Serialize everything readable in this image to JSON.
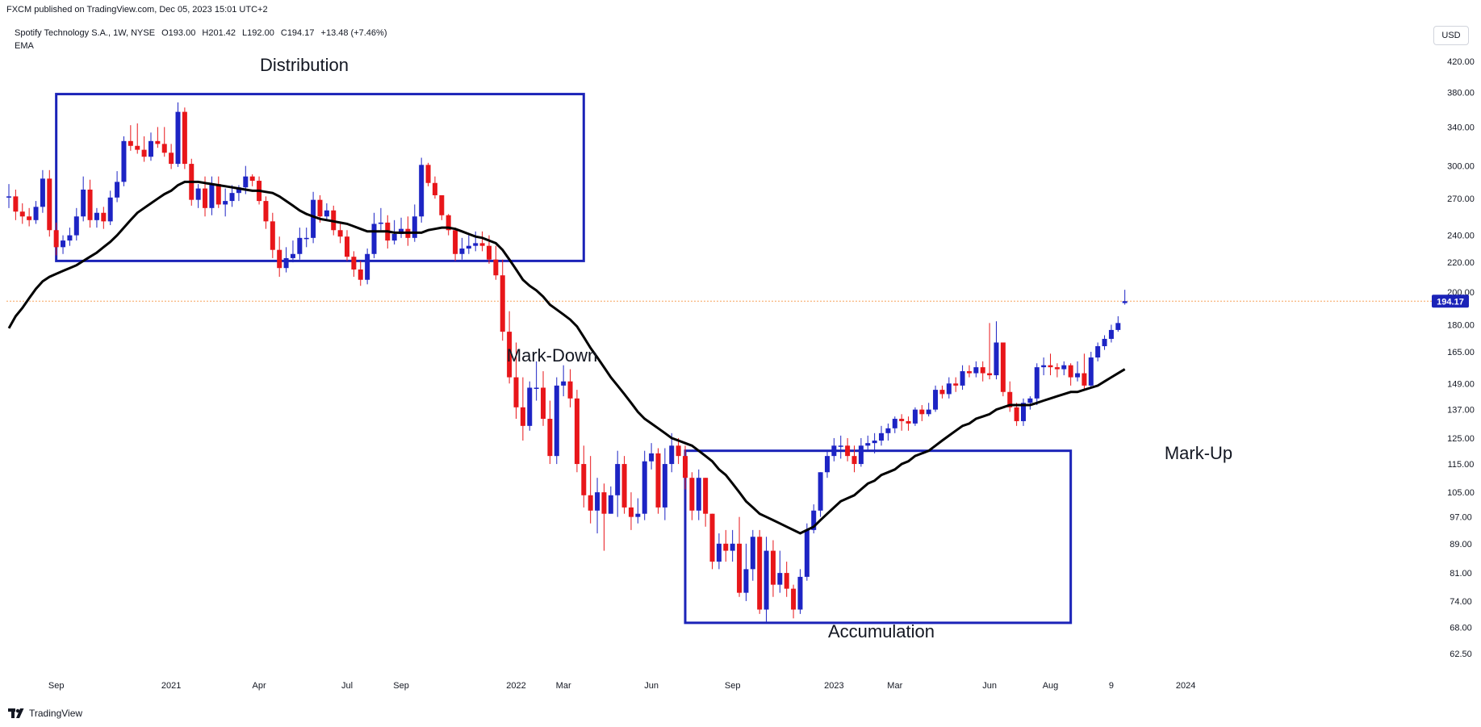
{
  "header": {
    "published": "FXCM published on TradingView.com, Dec 05, 2023 15:01 UTC+2",
    "symbol": "Spotify Technology S.A., 1W, NYSE",
    "open": "O193.00",
    "high": "H201.42",
    "low": "L192.00",
    "close": "C194.17",
    "change": "+13.48 (+7.46%)",
    "indicator": "EMA",
    "currency": "USD"
  },
  "footer": {
    "brand": "TradingView"
  },
  "colors": {
    "up": "#1d24c4",
    "down": "#e8161a",
    "ema": "#000000",
    "box": "#1b23b8",
    "last_price": "#1b23b8",
    "last_line": "#f7a35c"
  },
  "chart_data": {
    "type": "candlestick",
    "title": "Spotify Technology S.A., 1W, NYSE",
    "y_scale": "log",
    "ylim": [
      58,
      450
    ],
    "y_ticks": [
      "420.00",
      "380.00",
      "340.00",
      "300.00",
      "270.00",
      "240.00",
      "220.00",
      "200.00",
      "180.00",
      "165.00",
      "149.00",
      "137.00",
      "125.00",
      "115.00",
      "105.00",
      "97.00",
      "89.00",
      "81.00",
      "74.00",
      "68.00",
      "62.50"
    ],
    "x_ticks": [
      "Sep",
      "2021",
      "Apr",
      "Jul",
      "Sep",
      "2022",
      "Mar",
      "Jun",
      "Sep",
      "2023",
      "Mar",
      "Jun",
      "Aug",
      "9",
      "2024"
    ],
    "last_price": "194.17",
    "annotations": [
      {
        "text": "Distribution",
        "range_weeks": [
          7,
          85
        ],
        "price_range": [
          221,
          378
        ]
      },
      {
        "text": "Mark-Down"
      },
      {
        "text": "Accumulation",
        "range_weeks": [
          100,
          157
        ],
        "price_range": [
          69,
          120
        ]
      },
      {
        "text": "Mark-Up"
      }
    ],
    "ema_period_label": "EMA",
    "closes": [
      272,
      259,
      255,
      252,
      263,
      288,
      244,
      231,
      236,
      240,
      255,
      278,
      252,
      258,
      251,
      271,
      285,
      325,
      320,
      316,
      309,
      325,
      322,
      313,
      302,
      357,
      302,
      269,
      279,
      262,
      283,
      265,
      268,
      275,
      280,
      290,
      286,
      268,
      251,
      229,
      216,
      223,
      226,
      238,
      238,
      269,
      255,
      260,
      244,
      239,
      224,
      215,
      208,
      226,
      249,
      250,
      236,
      241,
      245,
      238,
      255,
      301,
      284,
      273,
      256,
      244,
      226,
      230,
      232,
      234,
      232,
      222,
      211,
      176,
      152,
      138,
      130,
      147,
      147,
      133,
      118,
      148,
      150,
      142,
      115,
      104,
      99,
      105,
      98,
      104,
      115,
      100,
      97,
      98,
      116,
      119,
      100,
      115,
      122,
      118,
      110,
      99,
      110,
      98,
      84,
      89,
      87,
      89,
      76,
      82,
      91,
      72,
      87,
      78,
      81,
      77,
      72,
      80,
      93,
      99,
      112,
      118,
      122,
      122,
      118,
      115,
      122,
      123,
      124,
      127,
      129,
      133,
      132,
      131,
      137,
      135,
      137,
      146,
      144,
      149,
      148,
      155,
      154,
      157,
      154,
      153,
      170,
      145,
      138,
      132,
      140,
      142,
      157,
      158,
      157,
      156,
      158,
      152,
      154,
      148,
      162,
      168,
      172,
      177,
      181,
      194.17
    ],
    "opens": [
      272,
      272,
      259,
      255,
      252,
      263,
      288,
      244,
      231,
      236,
      240,
      255,
      278,
      252,
      258,
      251,
      271,
      285,
      325,
      320,
      316,
      309,
      325,
      322,
      313,
      302,
      357,
      302,
      269,
      279,
      262,
      283,
      265,
      268,
      275,
      280,
      290,
      286,
      268,
      251,
      229,
      216,
      223,
      226,
      238,
      238,
      269,
      255,
      260,
      244,
      239,
      224,
      215,
      208,
      226,
      249,
      250,
      236,
      241,
      245,
      238,
      255,
      301,
      284,
      273,
      256,
      244,
      226,
      230,
      232,
      234,
      232,
      222,
      211,
      176,
      152,
      138,
      130,
      147,
      147,
      133,
      118,
      148,
      150,
      142,
      115,
      104,
      99,
      105,
      98,
      104,
      115,
      100,
      97,
      98,
      116,
      119,
      100,
      115,
      122,
      118,
      110,
      99,
      110,
      98,
      84,
      89,
      87,
      89,
      76,
      82,
      91,
      72,
      87,
      78,
      81,
      77,
      72,
      80,
      93,
      99,
      112,
      118,
      122,
      122,
      118,
      115,
      122,
      123,
      124,
      127,
      129,
      133,
      132,
      131,
      137,
      135,
      137,
      146,
      144,
      149,
      148,
      155,
      154,
      157,
      154,
      153,
      170,
      145,
      138,
      132,
      140,
      142,
      157,
      158,
      157,
      156,
      158,
      152,
      154,
      148,
      162,
      168,
      172,
      177,
      193.0
    ],
    "highs": [
      283,
      278,
      266,
      262,
      268,
      296,
      296,
      250,
      240,
      246,
      262,
      290,
      287,
      262,
      263,
      277,
      295,
      330,
      342,
      344,
      330,
      334,
      340,
      340,
      322,
      368,
      362,
      307,
      283,
      290,
      290,
      290,
      279,
      282,
      282,
      300,
      292,
      290,
      272,
      258,
      239,
      231,
      236,
      246,
      246,
      276,
      273,
      266,
      264,
      249,
      244,
      228,
      221,
      230,
      258,
      262,
      256,
      252,
      254,
      255,
      265,
      308,
      303,
      290,
      272,
      257,
      246,
      238,
      240,
      243,
      243,
      240,
      232,
      222,
      188,
      170,
      152,
      150,
      160,
      155,
      141,
      152,
      158,
      156,
      146,
      122,
      118,
      110,
      108,
      107,
      120,
      118,
      105,
      103,
      120,
      123,
      121,
      121,
      127,
      125,
      122,
      112,
      113,
      110,
      98,
      92,
      93,
      93,
      97,
      89,
      93,
      93,
      91,
      90,
      87,
      84,
      78,
      82,
      95,
      101,
      112,
      120,
      125,
      126,
      125,
      122,
      125,
      126,
      127,
      130,
      131,
      134,
      135,
      134,
      138,
      139,
      140,
      148,
      148,
      152,
      152,
      158,
      158,
      160,
      160,
      181,
      182,
      167,
      150,
      140,
      142,
      143,
      159,
      162,
      164,
      159,
      160,
      159,
      160,
      164,
      165,
      170,
      174,
      180,
      185,
      201.42
    ],
    "lows": [
      262,
      252,
      249,
      247,
      249,
      258,
      239,
      225,
      226,
      232,
      236,
      251,
      246,
      246,
      245,
      248,
      267,
      281,
      315,
      312,
      304,
      305,
      318,
      309,
      297,
      299,
      297,
      264,
      262,
      255,
      256,
      262,
      255,
      263,
      268,
      274,
      281,
      265,
      245,
      223,
      210,
      213,
      220,
      222,
      231,
      234,
      250,
      252,
      240,
      234,
      221,
      210,
      204,
      205,
      223,
      244,
      230,
      233,
      238,
      232,
      235,
      250,
      281,
      270,
      252,
      240,
      221,
      222,
      226,
      228,
      228,
      219,
      208,
      171,
      149,
      133,
      124,
      128,
      141,
      130,
      115,
      115,
      143,
      138,
      112,
      100,
      95,
      92,
      87,
      98,
      97,
      98,
      93,
      95,
      96,
      113,
      98,
      96,
      112,
      115,
      106,
      96,
      96,
      94,
      82,
      82,
      84,
      84,
      75,
      74,
      79,
      71,
      69,
      75,
      76,
      75,
      70,
      71,
      79,
      92,
      97,
      110,
      116,
      117,
      116,
      112,
      114,
      120,
      119,
      122,
      124,
      127,
      128,
      128,
      130,
      132,
      134,
      136,
      142,
      142,
      145,
      146,
      152,
      152,
      150,
      151,
      151,
      143,
      136,
      130,
      130,
      137,
      139,
      153,
      153,
      152,
      153,
      148,
      150,
      146,
      147,
      160,
      166,
      170,
      176,
      192.0
    ],
    "ema": [
      178,
      185,
      190,
      196,
      202,
      207,
      210,
      212,
      214,
      216,
      218,
      221,
      224,
      227,
      231,
      235,
      240,
      246,
      252,
      258,
      262,
      266,
      270,
      274,
      277,
      282,
      285,
      285,
      285,
      284,
      283,
      282,
      281,
      280,
      279,
      278,
      277,
      277,
      276,
      275,
      272,
      268,
      264,
      260,
      257,
      255,
      253,
      252,
      251,
      250,
      249,
      247,
      245,
      243,
      243,
      243,
      243,
      242,
      242,
      242,
      242,
      242,
      244,
      245,
      246,
      246,
      245,
      243,
      241,
      239,
      238,
      236,
      234,
      229,
      222,
      215,
      208,
      204,
      201,
      197,
      192,
      189,
      186,
      183,
      179,
      173,
      167,
      162,
      157,
      152,
      148,
      144,
      140,
      136,
      133,
      131,
      129,
      127,
      125,
      124,
      123,
      122,
      120,
      118,
      116,
      113,
      111,
      108,
      105,
      102,
      100,
      98,
      97,
      96,
      95,
      94,
      93,
      92,
      93,
      94,
      96,
      98,
      100,
      102,
      103,
      104,
      106,
      108,
      109,
      111,
      112,
      113,
      115,
      116,
      118,
      119,
      120,
      122,
      124,
      126,
      128,
      130,
      131,
      133,
      134,
      135,
      137,
      138,
      139,
      139,
      139,
      139,
      140,
      141,
      142,
      143,
      144,
      145,
      145,
      146,
      147,
      148,
      150,
      152,
      154,
      156
    ]
  }
}
